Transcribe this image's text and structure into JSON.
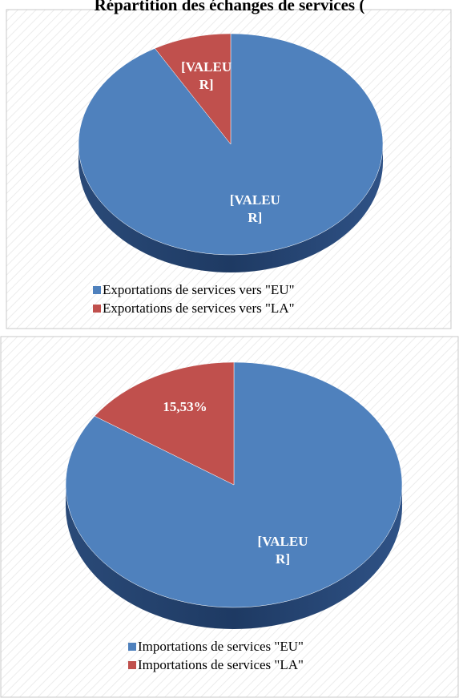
{
  "title": "Répartition des échanges de services (",
  "chart_data": [
    {
      "type": "pie3d",
      "categories": [
        "Exportations de services vers \"EU\"",
        "Exportations de services vers \"LA\""
      ],
      "values": [
        91.7,
        8.3
      ],
      "value_labels": [
        "[VALEUR]",
        "[VALEUR]"
      ],
      "colors": [
        "#4f81bd",
        "#c0504d"
      ]
    },
    {
      "type": "pie3d",
      "categories": [
        "Importations de services \"EU\"",
        "Importations de services \"LA\""
      ],
      "values": [
        84.47,
        15.53
      ],
      "value_labels": [
        "[VALEUR]",
        "15,53%"
      ],
      "colors": [
        "#4f81bd",
        "#c0504d"
      ]
    }
  ]
}
